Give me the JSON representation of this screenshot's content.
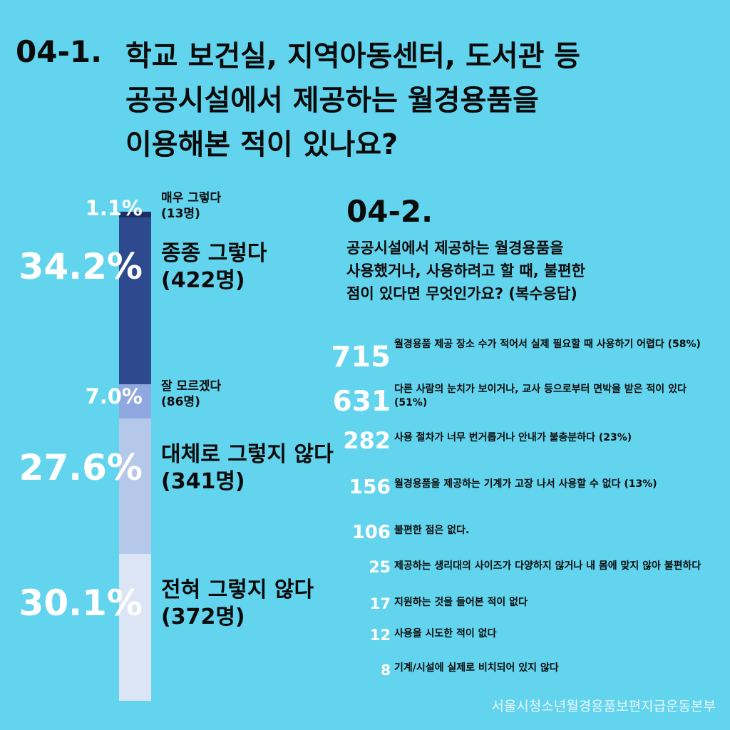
{
  "q1": {
    "number": "04-1.",
    "title_lines": [
      "학교 보건실, 지역아동센터, 도서관 등",
      "공공시설에서 제공하는 월경용품을",
      "이용해본 적이 있나요?"
    ]
  },
  "q2": {
    "number": "04-2.",
    "title_lines": [
      "공공시설에서 제공하는 월경용품을",
      "사용했거나, 사용하려고 할 때, 불편한",
      "점이 있다면 무엇인가요? (복수응답)"
    ]
  },
  "chart_data": [
    {
      "type": "bar",
      "title": "04-1. 학교 보건실, 지역아동센터, 도서관 등 공공시설에서 제공하는 월경용품을 이용해본 적이 있나요?",
      "stacked": true,
      "categories": [
        "매우 그렇다",
        "종종 그렇다",
        "잘 모르겠다",
        "대체로 그렇지 않다",
        "전혀 그렇지 않다"
      ],
      "values": [
        1.1,
        34.2,
        7.0,
        27.6,
        30.1
      ],
      "counts": [
        13,
        422,
        86,
        341,
        372
      ],
      "pct_labels": [
        "1.1%",
        "34.2%",
        "7.0%",
        "27.6%",
        "30.1%"
      ],
      "count_labels": [
        "(13명)",
        "(422명)",
        "(86명)",
        "(341명)",
        "(372명)"
      ],
      "colors": [
        "#1e2e63",
        "#2e4a8e",
        "#8fa8df",
        "#b6c8ea",
        "#dce5f5"
      ]
    },
    {
      "type": "table",
      "title": "04-2. 공공시설에서 제공하는 월경용품을 사용했거나, 사용하려고 할 때, 불편한 점이 있다면 무엇인가요? (복수응답)",
      "rows": [
        {
          "count": 715,
          "text": "월경용품 제공 장소 수가 적어서 실제 필요할 때 사용하기 어렵다 (58%)"
        },
        {
          "count": 631,
          "text": "다른 사람의 눈치가 보이거나, 교사 등으로부터 면박을 받은 적이 있다 (51%)"
        },
        {
          "count": 282,
          "text": "사용 절차가 너무 번거롭거나 안내가 불충분하다 (23%)"
        },
        {
          "count": 156,
          "text": "월경용품을 제공하는 기계가 고장 나서 사용할 수 없다 (13%)"
        },
        {
          "count": 106,
          "text": "불편한 점은 없다."
        },
        {
          "count": 25,
          "text": "제공하는 생리대의 사이즈가 다양하지 않거나 내 몸에 맞지 않아 불편하다"
        },
        {
          "count": 17,
          "text": "지원하는 것을 들어본 적이 없다"
        },
        {
          "count": 12,
          "text": "사용을 시도한 적이 없다"
        },
        {
          "count": 8,
          "text": "기계/시설에 실제로 비치되어 있지 않다"
        }
      ]
    }
  ],
  "footer": "서울시청소년월경용품보편지급운동본부"
}
